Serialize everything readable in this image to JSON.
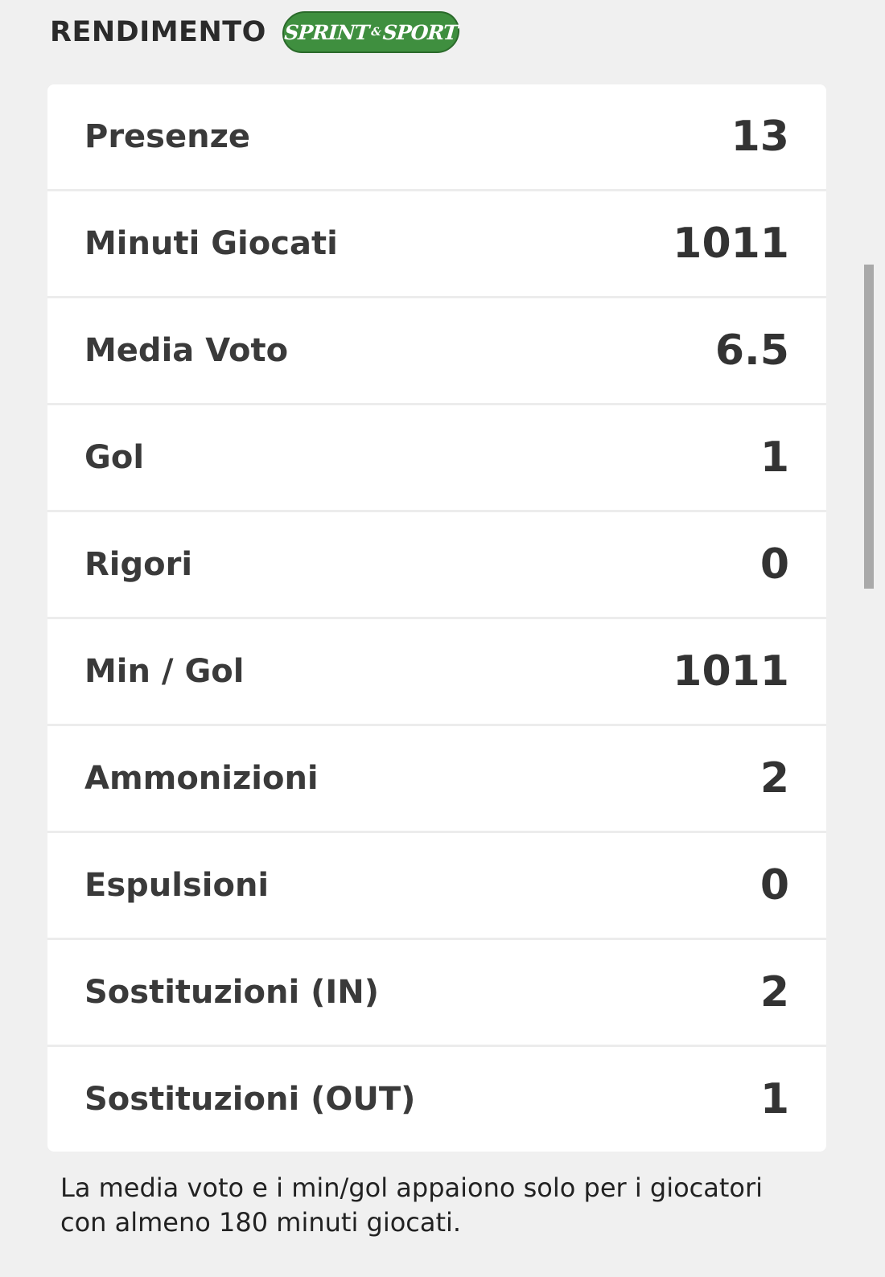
{
  "header": {
    "title": "RENDIMENTO",
    "logo_text": "SPRINT & SPORT",
    "logo_left": "SPRINT",
    "logo_amp": "&",
    "logo_right": "SPORT"
  },
  "stats": [
    {
      "label": "Presenze",
      "value": "13"
    },
    {
      "label": "Minuti Giocati",
      "value": "1011"
    },
    {
      "label": "Media Voto",
      "value": "6.5"
    },
    {
      "label": "Gol",
      "value": "1"
    },
    {
      "label": "Rigori",
      "value": "0"
    },
    {
      "label": "Min / Gol",
      "value": "1011"
    },
    {
      "label": "Ammonizioni",
      "value": "2"
    },
    {
      "label": "Espulsioni",
      "value": "0"
    },
    {
      "label": "Sostituzioni (IN)",
      "value": "2"
    },
    {
      "label": "Sostituzioni (OUT)",
      "value": "1"
    }
  ],
  "note": "La media voto e i min/gol appaiono solo per i giocatori con almeno 180 minuti giocati.",
  "colors": {
    "logo_green": "#3f8f3f",
    "background": "#f0f0f0"
  }
}
